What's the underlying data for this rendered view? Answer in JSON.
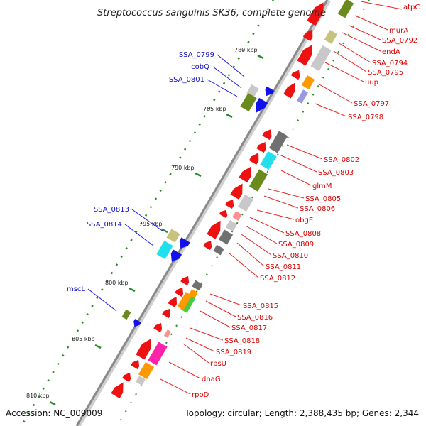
{
  "title": "Streptococcus sanguinis SK36, complete genome",
  "footer": {
    "accession": "Accession: NC_009009",
    "topology": "Topology: circular; Length: 2,388,435 bp; Genes: 2,344"
  },
  "colors": {
    "cds_red": "#ee1111",
    "label_red": "#dd0000",
    "label_blue": "#1010cc",
    "backbone": "#8a8a8a",
    "tick_green": "#2a8a2a",
    "olive": "#6b8a1e",
    "khaki": "#c8c27a",
    "cyan": "#20e0ee",
    "gray": "#707070",
    "lightgray": "#c8c8c8",
    "orange": "#ff9900",
    "magenta": "#ff22aa",
    "pink": "#ff9090",
    "green": "#44cc44",
    "blue": "#1111ee",
    "lavender": "#9999dd"
  },
  "tick_labels": [
    "780 kbp",
    "785 kbp",
    "790 kbp",
    "795 kbp",
    "800 kbp",
    "805 kbp",
    "810 kbp"
  ],
  "right_labels": [
    "atpC",
    "murA",
    "SSA_0792",
    "endA",
    "SSA_0794",
    "SSA_0795",
    "uup",
    "SSA_0797",
    "SSA_0798",
    "SSA_0802",
    "SSA_0803",
    "glmM",
    "SSA_0805",
    "SSA_0806",
    "obgE",
    "SSA_0808",
    "SSA_0809",
    "SSA_0810",
    "SSA_0811",
    "SSA_0812",
    "SSA_0815",
    "SSA_0816",
    "SSA_0817",
    "SSA_0818",
    "SSA_0819",
    "rpsU",
    "dnaG",
    "rpoD"
  ],
  "left_labels": [
    "SSA_0799",
    "cobQ",
    "SSA_0801",
    "SSA_0813",
    "SSA_0814",
    "mscL"
  ]
}
